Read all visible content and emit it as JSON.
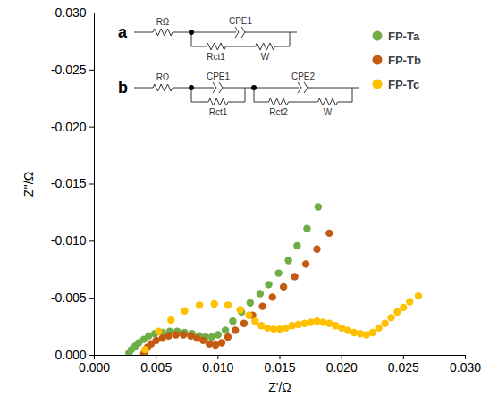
{
  "chart_data": {
    "type": "scatter",
    "x_label": "Z'/Ω",
    "y_label": "Z''/Ω",
    "xlim": [
      0,
      0.03
    ],
    "xticks": [
      {
        "value": 0,
        "label": "0.000"
      },
      {
        "value": 0.005,
        "label": "0.005"
      },
      {
        "value": 0.01,
        "label": "0.010"
      },
      {
        "value": 0.015,
        "label": "0.015"
      },
      {
        "value": 0.02,
        "label": "0.020"
      },
      {
        "value": 0.025,
        "label": "0.025"
      },
      {
        "value": 0.03,
        "label": "0.030"
      }
    ],
    "ylim": [
      0,
      -0.03
    ],
    "yticks": [
      {
        "value": 0,
        "label": "0.000"
      },
      {
        "value": -0.005,
        "label": "-0.005"
      },
      {
        "value": -0.01,
        "label": "-0.010"
      },
      {
        "value": -0.015,
        "label": "-0.015"
      },
      {
        "value": -0.02,
        "label": "-0.020"
      },
      {
        "value": -0.025,
        "label": "-0.025"
      },
      {
        "value": -0.03,
        "label": "-0.030"
      }
    ],
    "grid": false,
    "legend": "top-right",
    "marker": "circle",
    "series": [
      {
        "name": "FP-Ta",
        "color": "#70ad47",
        "x": [
          0.0028,
          0.003,
          0.0033,
          0.0036,
          0.004,
          0.0044,
          0.0049,
          0.0055,
          0.0061,
          0.0067,
          0.0073,
          0.0079,
          0.0085,
          0.009,
          0.0095,
          0.01,
          0.0106,
          0.0112,
          0.0119,
          0.0126,
          0.0134,
          0.0141,
          0.0149,
          0.0157,
          0.0164,
          0.0172,
          0.0181
        ],
        "values": [
          -0.0002,
          -0.0005,
          -0.0008,
          -0.0011,
          -0.0014,
          -0.0017,
          -0.0019,
          -0.002,
          -0.0021,
          -0.0021,
          -0.002,
          -0.0019,
          -0.0017,
          -0.0016,
          -0.0016,
          -0.0018,
          -0.0022,
          -0.003,
          -0.0038,
          -0.0046,
          -0.0054,
          -0.0062,
          -0.0072,
          -0.0083,
          -0.0096,
          -0.0111,
          -0.013
        ]
      },
      {
        "name": "FP-Tb",
        "color": "#c55a11",
        "x": [
          0.004,
          0.0041,
          0.0043,
          0.0046,
          0.005,
          0.0055,
          0.006,
          0.0066,
          0.0072,
          0.0078,
          0.0083,
          0.0088,
          0.0093,
          0.0098,
          0.0103,
          0.0108,
          0.0114,
          0.0121,
          0.0128,
          0.0136,
          0.0144,
          0.0153,
          0.0162,
          0.0171,
          0.018,
          0.019
        ],
        "values": [
          -0.0001,
          -0.0004,
          -0.0007,
          -0.001,
          -0.0013,
          -0.0015,
          -0.0017,
          -0.0018,
          -0.0018,
          -0.0017,
          -0.0015,
          -0.0013,
          -0.001,
          -0.0009,
          -0.0011,
          -0.0016,
          -0.0022,
          -0.0028,
          -0.0035,
          -0.0043,
          -0.0051,
          -0.006,
          -0.0069,
          -0.008,
          -0.0093,
          -0.0107
        ]
      },
      {
        "name": "FP-Tc",
        "color": "#ffc000",
        "x": [
          0.0041,
          0.0052,
          0.0062,
          0.0073,
          0.0085,
          0.0097,
          0.0108,
          0.0118,
          0.0125,
          0.013,
          0.0135,
          0.014,
          0.0145,
          0.015,
          0.0155,
          0.016,
          0.0165,
          0.017,
          0.0175,
          0.018,
          0.0185,
          0.019,
          0.0195,
          0.02,
          0.0205,
          0.021,
          0.0215,
          0.022,
          0.0225,
          0.023,
          0.0235,
          0.024,
          0.0245,
          0.025,
          0.0255,
          0.0262
        ],
        "values": [
          -0.0005,
          -0.0021,
          -0.0031,
          -0.0039,
          -0.0044,
          -0.0045,
          -0.0044,
          -0.004,
          -0.0035,
          -0.003,
          -0.0026,
          -0.0024,
          -0.0023,
          -0.0023,
          -0.0024,
          -0.0026,
          -0.0027,
          -0.0028,
          -0.0029,
          -0.003,
          -0.0029,
          -0.0028,
          -0.0026,
          -0.0024,
          -0.0022,
          -0.002,
          -0.0019,
          -0.0018,
          -0.002,
          -0.0024,
          -0.0028,
          -0.0033,
          -0.0038,
          -0.0042,
          -0.0047,
          -0.0052
        ]
      }
    ],
    "circuits": [
      {
        "label": "a",
        "series": "RΩ",
        "branches": [
          {
            "top": "CPE1",
            "bottom": [
              "Rct1",
              "W"
            ]
          }
        ]
      },
      {
        "label": "b",
        "series": "RΩ",
        "branches": [
          {
            "top": "CPE1",
            "bottom": [
              "Rct1"
            ]
          },
          {
            "top": "CPE2",
            "bottom": [
              "Rct2",
              "W"
            ]
          }
        ]
      }
    ]
  }
}
